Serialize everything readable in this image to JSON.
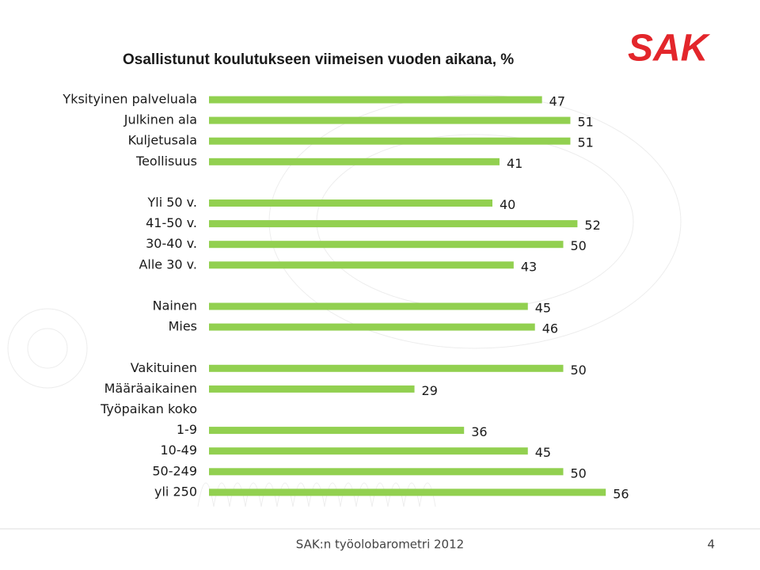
{
  "chart_data": {
    "type": "bar",
    "orientation": "horizontal",
    "title": "Osallistunut koulutukseen viimeisen vuoden aikana, %",
    "categories": [
      "Yksityinen palveluala",
      "Julkinen ala",
      "Kuljetusala",
      "Teollisuus",
      null,
      "Yli 50 v.",
      "41-50 v.",
      "30-40 v.",
      "Alle 30 v.",
      null,
      "Nainen",
      "Mies",
      null,
      "Vakituinen",
      "Määräaikainen",
      "Työpaikan koko",
      "1-9",
      "10-49",
      "50-249",
      "yli 250"
    ],
    "values": [
      47,
      51,
      51,
      41,
      null,
      40,
      52,
      50,
      43,
      null,
      45,
      46,
      null,
      50,
      29,
      null,
      36,
      45,
      50,
      56
    ],
    "color": "#92d050"
  },
  "logo": "SAK",
  "footer": "SAK:n työolobarometri 2012",
  "page_number": "4"
}
